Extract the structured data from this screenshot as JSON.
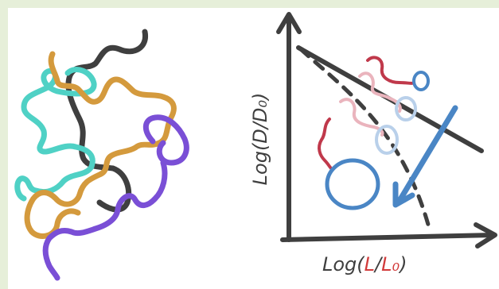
{
  "colors": {
    "background_frame": "#e6efd9",
    "panel": "#ffffff",
    "axis": "#3f3f3f",
    "strand_dark": "#3f3f3f",
    "strand_teal": "#4fd1c5",
    "strand_orange": "#d49a3d",
    "strand_purple": "#7a4fd6",
    "polymer_red": "#c0394b",
    "polymer_pink": "#eab4bd",
    "coil_blue": "#4a86c5",
    "coil_lightblue": "#b9d0ea",
    "arrow_blue": "#4a86c5",
    "label_red": "#d23b3b"
  },
  "axes": {
    "y_label": "Log(D/D₀)",
    "x_label_prefix": "Log(",
    "x_label_L": "L",
    "x_label_slash": "/",
    "x_label_L0": "L₀",
    "x_label_suffix": ")"
  }
}
